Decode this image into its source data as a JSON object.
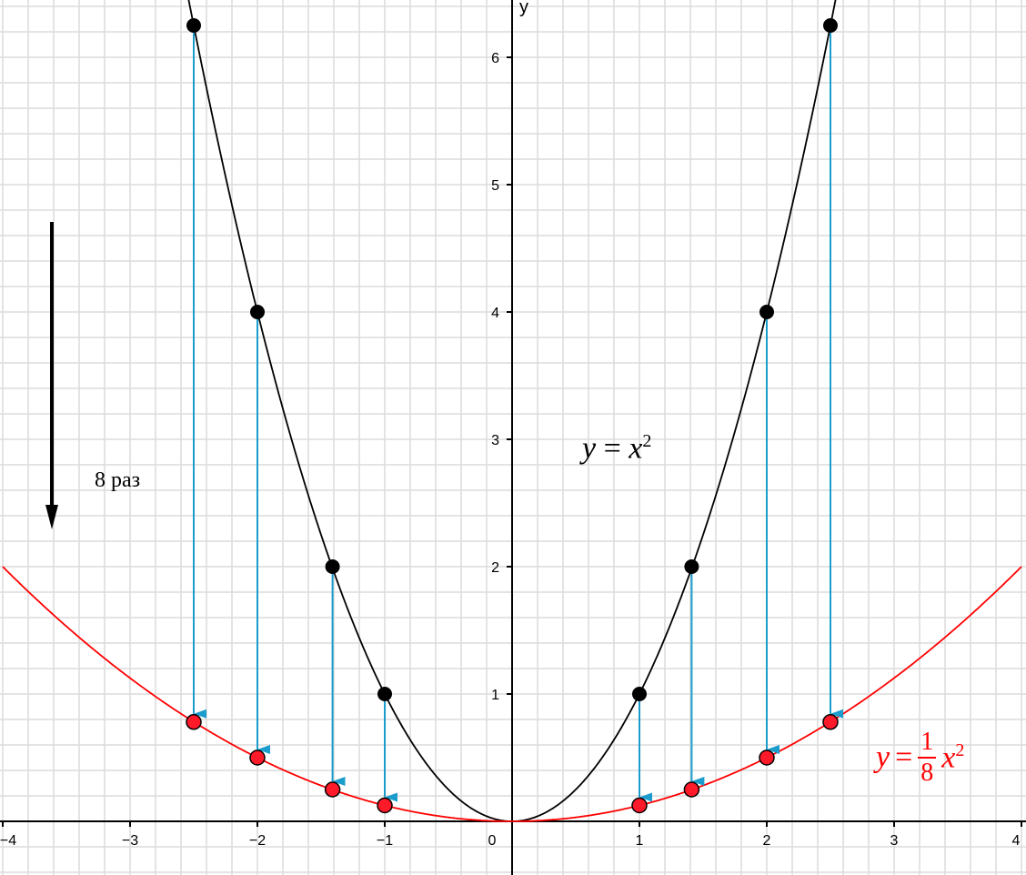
{
  "chart_data": {
    "type": "line",
    "xlim": [
      -4,
      4
    ],
    "ylim": [
      -0.42,
      6.4
    ],
    "grid": true,
    "minor_grid_step": 0.2,
    "x_ticks": [
      "−4",
      "−3",
      "−2",
      "−1",
      "0",
      "1",
      "2",
      "3",
      "4"
    ],
    "y_ticks": [
      "1",
      "2",
      "3",
      "4",
      "5",
      "6"
    ],
    "ylabel": "y",
    "series": [
      {
        "name": "y = x²",
        "formula": "x^2",
        "color": "#000000",
        "points": [
          [
            -2.5,
            6.25
          ],
          [
            -2,
            4
          ],
          [
            -1.41,
            2
          ],
          [
            -1,
            1
          ],
          [
            1,
            1
          ],
          [
            1.41,
            2
          ],
          [
            2,
            4
          ],
          [
            2.5,
            6.25
          ]
        ]
      },
      {
        "name": "y = 1/8 x²",
        "formula": "x^2/8",
        "color": "#ff0000",
        "points": [
          [
            -2.5,
            0.78
          ],
          [
            -2,
            0.5
          ],
          [
            -1.41,
            0.25
          ],
          [
            -1,
            0.125
          ],
          [
            1,
            0.125
          ],
          [
            1.41,
            0.25
          ],
          [
            2,
            0.5
          ],
          [
            2.5,
            0.78
          ]
        ]
      }
    ],
    "arrow_color": "#1a9ccc",
    "annotations": {
      "black_curve_label": {
        "y": "y",
        "eq": "=",
        "x": "x",
        "exp": "2"
      },
      "red_curve_label": {
        "y": "y",
        "eq": "=",
        "num": "1",
        "den": "8",
        "x": "x",
        "exp": "2"
      },
      "scale_note": "8 раз"
    }
  }
}
